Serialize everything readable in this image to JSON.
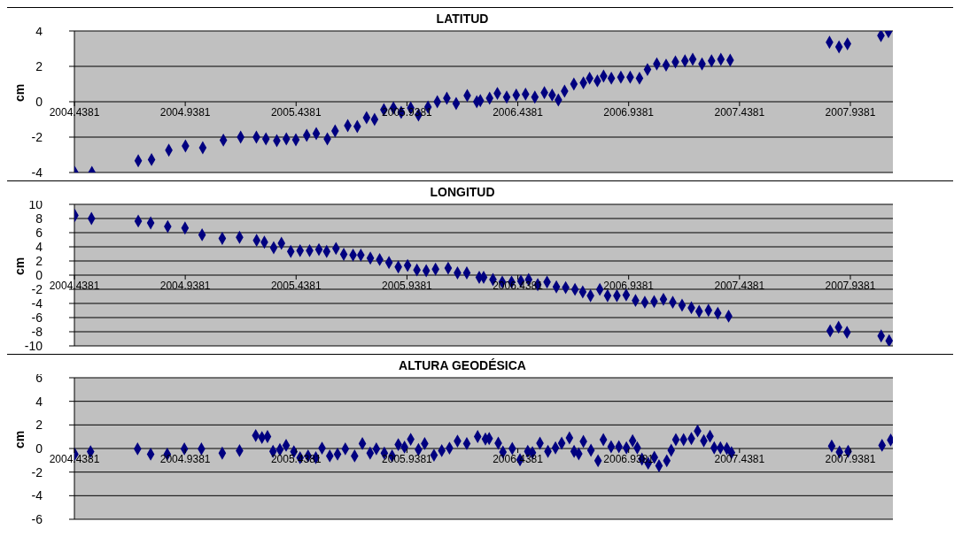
{
  "chart_data": [
    {
      "type": "scatter",
      "title": "LATITUD",
      "ylabel": "cm",
      "color": "#000080",
      "marker": "diamond",
      "grid": "y",
      "xlim": [
        2004.4381,
        2008.13
      ],
      "xticks": [
        2004.4381,
        2004.9381,
        2005.4381,
        2005.9381,
        2006.4381,
        2006.9381,
        2007.4381,
        2007.9381
      ],
      "ylim": [
        -4,
        4
      ],
      "yticks": [
        -4,
        -2,
        0,
        2,
        4
      ],
      "x": [
        2004.44,
        2004.517,
        2004.726,
        2004.786,
        2004.864,
        2004.939,
        2005.017,
        2005.11,
        2005.188,
        2005.259,
        2005.302,
        2005.351,
        2005.394,
        2005.437,
        2005.486,
        2005.529,
        2005.579,
        2005.614,
        2005.671,
        2005.714,
        2005.756,
        2005.792,
        2005.834,
        2005.877,
        2005.912,
        2005.955,
        2005.99,
        2006.033,
        2006.075,
        2006.118,
        2006.16,
        2006.21,
        2006.253,
        2006.269,
        2006.311,
        2006.346,
        2006.388,
        2006.431,
        2006.473,
        2006.515,
        2006.558,
        2006.593,
        2006.621,
        2006.649,
        2006.691,
        2006.734,
        2006.762,
        2006.797,
        2006.825,
        2006.86,
        2006.903,
        2006.945,
        2006.987,
        2007.023,
        2007.065,
        2007.107,
        2007.149,
        2007.192,
        2007.227,
        2007.269,
        2007.312,
        2007.354,
        2007.396,
        2007.844,
        2007.887,
        2007.925,
        2008.076,
        2008.11
      ],
      "values": [
        -4,
        -4,
        -3.34,
        -3.27,
        -2.74,
        -2.5,
        -2.6,
        -2.17,
        -2,
        -2,
        -2.1,
        -2.2,
        -2.1,
        -2.15,
        -1.9,
        -1.8,
        -2.1,
        -1.65,
        -1.35,
        -1.4,
        -0.9,
        -1,
        -0.45,
        -0.35,
        -0.6,
        -0.35,
        -0.75,
        -0.3,
        0,
        0.2,
        -0.1,
        0.35,
        0,
        0.06,
        0.2,
        0.47,
        0.26,
        0.38,
        0.43,
        0.26,
        0.51,
        0.38,
        0.1,
        0.6,
        1,
        1.07,
        1.33,
        1.18,
        1.45,
        1.33,
        1.39,
        1.39,
        1.33,
        1.82,
        2.14,
        2.07,
        2.25,
        2.31,
        2.4,
        2.14,
        2.31,
        2.4,
        2.35,
        3.36,
        3.1,
        3.27,
        3.74,
        3.96
      ]
    },
    {
      "type": "scatter",
      "title": "LONGITUD",
      "ylabel": "cm",
      "color": "#000080",
      "marker": "diamond",
      "grid": "y",
      "xlim": [
        2004.4381,
        2008.13
      ],
      "xticks": [
        2004.4381,
        2004.9381,
        2005.4381,
        2005.9381,
        2006.4381,
        2006.9381,
        2007.4381,
        2007.9381
      ],
      "ylim": [
        -10,
        10
      ],
      "yticks": [
        -10,
        -8,
        -6,
        -4,
        -2,
        0,
        2,
        4,
        6,
        8,
        10
      ],
      "x": [
        2004.44,
        2004.515,
        2004.726,
        2004.782,
        2004.859,
        2004.937,
        2005.014,
        2005.105,
        2005.183,
        2005.26,
        2005.295,
        2005.337,
        2005.372,
        2005.414,
        2005.456,
        2005.499,
        2005.541,
        2005.576,
        2005.618,
        2005.653,
        2005.695,
        2005.73,
        2005.773,
        2005.815,
        2005.857,
        2005.899,
        2005.941,
        2005.983,
        2006.025,
        2006.067,
        2006.124,
        2006.166,
        2006.208,
        2006.264,
        2006.284,
        2006.326,
        2006.368,
        2006.41,
        2006.452,
        2006.487,
        2006.528,
        2006.57,
        2006.612,
        2006.654,
        2006.696,
        2006.731,
        2006.766,
        2006.808,
        2006.843,
        2006.885,
        2006.927,
        2006.969,
        2007.011,
        2007.053,
        2007.095,
        2007.137,
        2007.179,
        2007.221,
        2007.256,
        2007.298,
        2007.34,
        2007.389,
        2007.847,
        2007.885,
        2007.923,
        2008.077,
        2008.113
      ],
      "values": [
        8.43,
        8,
        7.64,
        7.38,
        6.86,
        6.65,
        5.7,
        5.18,
        5.34,
        4.92,
        4.66,
        3.87,
        4.5,
        3.35,
        3.46,
        3.46,
        3.61,
        3.35,
        3.77,
        2.93,
        2.83,
        2.83,
        2.41,
        2.2,
        1.78,
        1.15,
        1.36,
        0.73,
        0.63,
        0.84,
        0.99,
        0.31,
        0.31,
        -0.31,
        -0.31,
        -0.62,
        -0.98,
        -0.98,
        -0.83,
        -0.62,
        -1.35,
        -0.98,
        -1.66,
        -1.76,
        -2.02,
        -2.38,
        -2.9,
        -2.02,
        -2.9,
        -2.9,
        -2.8,
        -3.58,
        -3.83,
        -3.73,
        -3.42,
        -3.83,
        -4.25,
        -4.61,
        -5.13,
        -4.97,
        -5.39,
        -5.8,
        -7.88,
        -7.36,
        -8.08,
        -8.6,
        -9.27
      ]
    },
    {
      "type": "scatter",
      "title": "ALTURA GEODÉSICA",
      "ylabel": "cm",
      "color": "#000080",
      "marker": "diamond",
      "grid": "y",
      "xlim": [
        2004.4381,
        2008.13
      ],
      "xticks": [
        2004.4381,
        2004.9381,
        2005.4381,
        2005.9381,
        2006.4381,
        2006.9381,
        2007.4381,
        2007.9381
      ],
      "ylim": [
        -6,
        6
      ],
      "yticks": [
        -6,
        -4,
        -2,
        0,
        2,
        4,
        6
      ],
      "x": [
        2004.44,
        2004.511,
        2004.723,
        2004.782,
        2004.857,
        2004.934,
        2005.011,
        2005.105,
        2005.183,
        2005.256,
        2005.284,
        2005.309,
        2005.334,
        2005.365,
        2005.393,
        2005.428,
        2005.456,
        2005.492,
        2005.527,
        2005.555,
        2005.59,
        2005.625,
        2005.66,
        2005.702,
        2005.737,
        2005.772,
        2005.8,
        2005.836,
        2005.871,
        2005.899,
        2005.927,
        2005.955,
        2005.99,
        2006.018,
        2006.06,
        2006.095,
        2006.13,
        2006.166,
        2006.208,
        2006.257,
        2006.292,
        2006.309,
        2006.35,
        2006.371,
        2006.413,
        2006.448,
        2006.483,
        2006.504,
        2006.538,
        2006.574,
        2006.608,
        2006.636,
        2006.671,
        2006.692,
        2006.713,
        2006.734,
        2006.768,
        2006.8,
        2006.824,
        2006.859,
        2006.894,
        2006.928,
        2006.956,
        2006.977,
        2006.998,
        2007.026,
        2007.054,
        2007.075,
        2007.11,
        2007.13,
        2007.151,
        2007.186,
        2007.221,
        2007.249,
        2007.277,
        2007.305,
        2007.324,
        2007.352,
        2007.381,
        2007.402,
        2007.854,
        2007.889,
        2007.928,
        2008.081,
        2008.12
      ],
      "values": [
        -0.48,
        -0.27,
        -0.03,
        -0.48,
        -0.48,
        -0.03,
        -0.03,
        -0.39,
        -0.18,
        1.1,
        0.93,
        1.01,
        -0.24,
        -0.09,
        0.27,
        -0.27,
        -0.78,
        -0.63,
        -0.78,
        0.03,
        -0.63,
        -0.48,
        -0.03,
        -0.63,
        0.42,
        -0.39,
        -0.03,
        -0.39,
        -0.63,
        0.33,
        0.12,
        0.78,
        -0.09,
        0.42,
        -0.57,
        -0.18,
        0.03,
        0.63,
        0.42,
        1.01,
        0.81,
        0.84,
        0.45,
        -0.3,
        0,
        -0.96,
        -0.24,
        -0.36,
        0.45,
        -0.24,
        0.06,
        0.45,
        0.9,
        -0.24,
        -0.45,
        0.6,
        -0.15,
        -1.04,
        0.75,
        0.15,
        0.15,
        0.06,
        0.66,
        0.06,
        -0.9,
        -1.25,
        -0.75,
        -1.46,
        -1.04,
        -0.15,
        0.75,
        0.75,
        0.84,
        1.49,
        0.66,
        1.04,
        0.06,
        0.06,
        0,
        -0.36,
        0.21,
        -0.3,
        -0.24,
        0.27,
        0.72
      ]
    }
  ]
}
